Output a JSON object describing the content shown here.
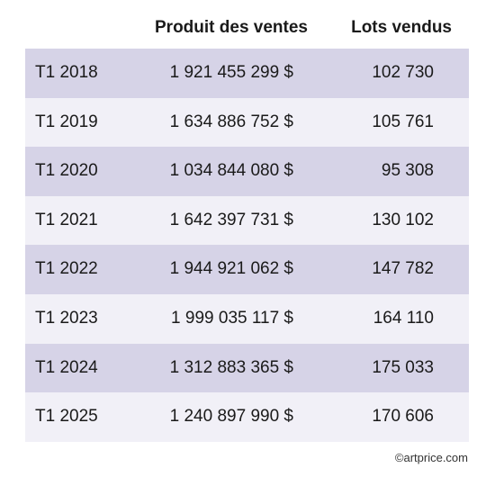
{
  "chart_data": {
    "type": "table",
    "columns": [
      "",
      "Produit des ventes",
      "Lots vendus"
    ],
    "rows": [
      {
        "period": "T1 2018",
        "sales": "1 921 455 299 $",
        "lots": "102 730"
      },
      {
        "period": "T1 2019",
        "sales": "1 634 886 752 $",
        "lots": "105 761"
      },
      {
        "period": "T1 2020",
        "sales": "1 034 844 080 $",
        "lots": "95 308"
      },
      {
        "period": "T1 2021",
        "sales": "1 642 397 731 $",
        "lots": "130 102"
      },
      {
        "period": "T1 2022",
        "sales": "1 944 921 062 $",
        "lots": "147 782"
      },
      {
        "period": "T1 2023",
        "sales": "1 999 035 117 $",
        "lots": "164 110"
      },
      {
        "period": "T1 2024",
        "sales": "1 312 883 365 $",
        "lots": "175 033"
      },
      {
        "period": "T1 2025",
        "sales": "1 240 897 990 $",
        "lots": "170 606"
      }
    ]
  },
  "credit": "©artprice.com",
  "colors": {
    "row_band_dark": "#d6d3e7",
    "row_band_light": "#f1f0f7",
    "text": "#1a1a1a"
  }
}
